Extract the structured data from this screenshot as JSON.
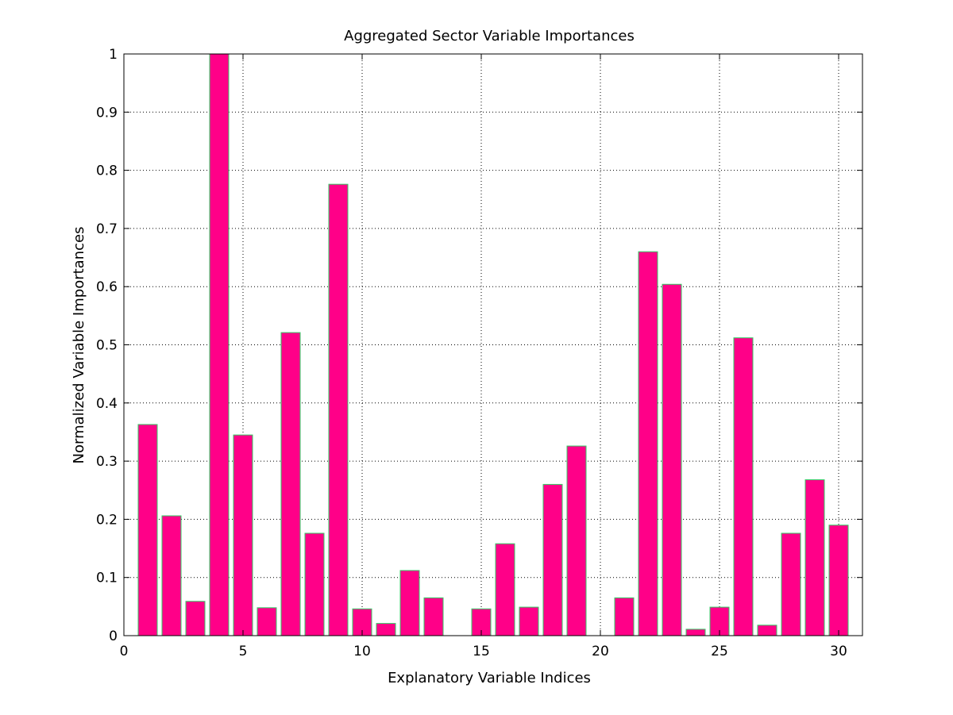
{
  "chart_data": {
    "type": "bar",
    "title": "Aggregated Sector Variable Importances",
    "xlabel": "Explanatory Variable Indices",
    "ylabel": "Normalized Variable Importances",
    "x": [
      1,
      2,
      3,
      4,
      5,
      6,
      7,
      8,
      9,
      10,
      11,
      12,
      13,
      14,
      15,
      16,
      17,
      18,
      19,
      20,
      21,
      22,
      23,
      24,
      25,
      26,
      27,
      28,
      29,
      30
    ],
    "values": [
      0.363,
      0.206,
      0.059,
      1.0,
      0.345,
      0.048,
      0.521,
      0.176,
      0.776,
      0.046,
      0.021,
      0.112,
      0.065,
      0.0,
      0.046,
      0.158,
      0.049,
      0.26,
      0.326,
      0.0,
      0.065,
      0.66,
      0.604,
      0.011,
      0.049,
      0.512,
      0.018,
      0.176,
      0.268,
      0.19
    ],
    "xlim": [
      0,
      31
    ],
    "ylim": [
      0,
      1
    ],
    "xticks": [
      0,
      5,
      10,
      15,
      20,
      25,
      30
    ],
    "xtick_labels": [
      "0",
      "5",
      "10",
      "15",
      "20",
      "25",
      "30"
    ],
    "yticks": [
      0,
      0.1,
      0.2,
      0.3,
      0.4,
      0.5,
      0.6,
      0.7,
      0.8,
      0.9,
      1
    ],
    "ytick_labels": [
      "0",
      "0.1",
      "0.2",
      "0.3",
      "0.4",
      "0.5",
      "0.6",
      "0.7",
      "0.8",
      "0.9",
      "1"
    ],
    "grid": true,
    "bar_color": "#ff0088",
    "bar_edge_color": "#33cc66"
  }
}
